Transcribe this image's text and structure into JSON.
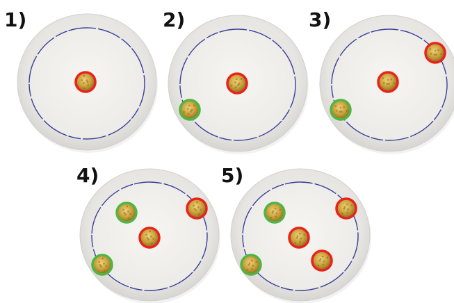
{
  "colors": {
    "background": "#ffffff",
    "plate_rim": "#e4e3e0",
    "plate_rim_edge": "#d2d1cd",
    "plate_well": "#f1f0ed",
    "plate_stripe": "#3a3f9a",
    "coin_gold": "#c9a23c",
    "coin_dark": "#8a6a1e",
    "ring_red": "#e8231c",
    "ring_green": "#4fb545"
  },
  "steps": [
    {
      "label": "1)",
      "coins": [
        {
          "ring": "red"
        }
      ]
    },
    {
      "label": "2)",
      "coins": [
        {
          "ring": "red"
        },
        {
          "ring": "green"
        }
      ]
    },
    {
      "label": "3)",
      "coins": [
        {
          "ring": "red"
        },
        {
          "ring": "red"
        },
        {
          "ring": "green"
        }
      ]
    },
    {
      "label": "4)",
      "coins": [
        {
          "ring": "green"
        },
        {
          "ring": "red"
        },
        {
          "ring": "red"
        },
        {
          "ring": "green"
        }
      ]
    },
    {
      "label": "5)",
      "coins": [
        {
          "ring": "green"
        },
        {
          "ring": "red"
        },
        {
          "ring": "red"
        },
        {
          "ring": "red"
        },
        {
          "ring": "green"
        }
      ]
    }
  ]
}
